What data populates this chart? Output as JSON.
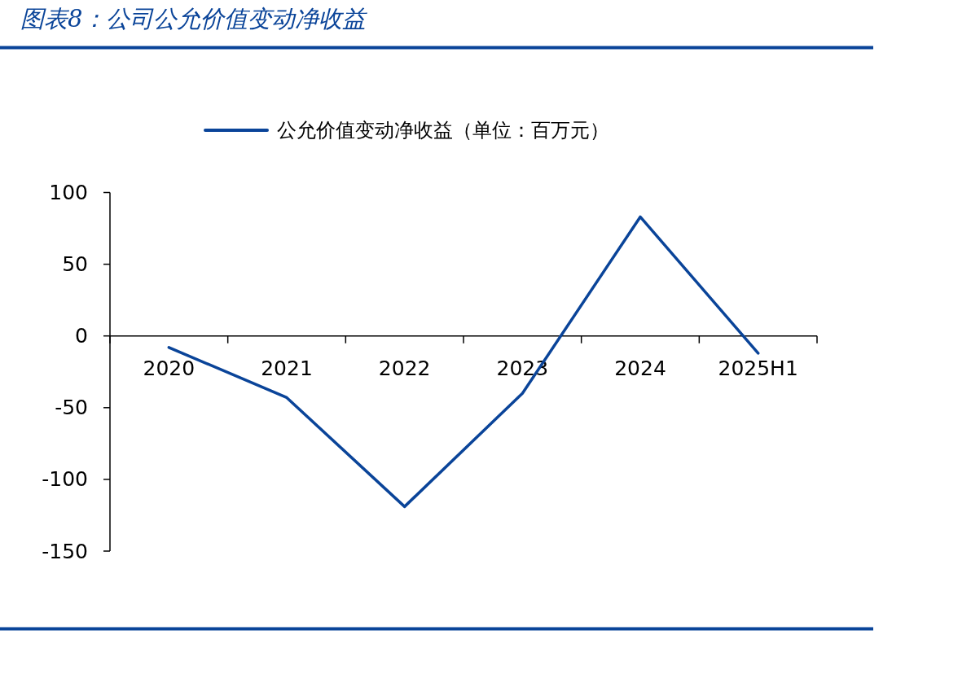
{
  "chart_data": {
    "type": "line",
    "title": "图表8：公司公允价值变动净收益",
    "categories": [
      "2020",
      "2021",
      "2022",
      "2023",
      "2024",
      "2025H1"
    ],
    "series": [
      {
        "name": "公允价值变动净收益（单位：百万元）",
        "color": "#0a4499",
        "values": [
          -8,
          -43,
          -119,
          -40,
          83,
          -12
        ]
      }
    ],
    "ylim": [
      -150,
      100
    ],
    "yticks": [
      -150,
      -100,
      -50,
      0,
      50,
      100
    ],
    "legend": "top"
  }
}
